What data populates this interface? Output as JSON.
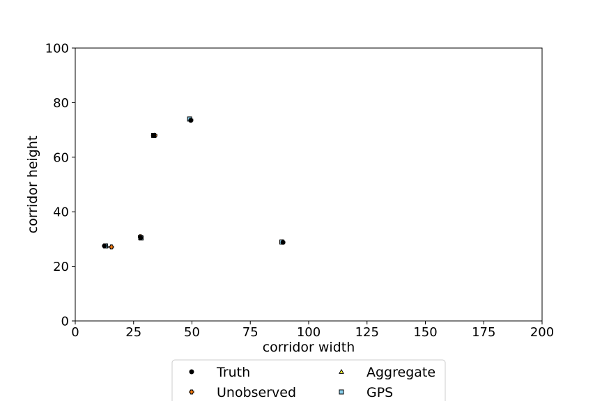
{
  "chart_data": {
    "type": "scatter",
    "title": "",
    "xlabel": "corridor width",
    "ylabel": "corridor height",
    "xlim": [
      0,
      200
    ],
    "ylim": [
      0,
      100
    ],
    "xticks": [
      "0",
      "25",
      "50",
      "75",
      "100",
      "125",
      "150",
      "175",
      "200"
    ],
    "yticks": [
      "0",
      "20",
      "40",
      "60",
      "80",
      "100"
    ],
    "grid": false,
    "legend_position": "bottom-center",
    "series": [
      {
        "name": "Truth",
        "marker": "circle",
        "color": "#000000",
        "points": [
          {
            "x": 12.5,
            "y": 27.5
          },
          {
            "x": 28,
            "y": 30.5
          },
          {
            "x": 33.5,
            "y": 68
          },
          {
            "x": 49.5,
            "y": 73.5
          },
          {
            "x": 89,
            "y": 28.8
          }
        ]
      },
      {
        "name": "Unobserved",
        "marker": "plus",
        "color": "#ff7f0e",
        "points": [
          {
            "x": 15.5,
            "y": 27.1
          },
          {
            "x": 27.9,
            "y": 30.9
          },
          {
            "x": 34.1,
            "y": 68
          },
          {
            "x": 49.5,
            "y": 73.6
          },
          {
            "x": 88.5,
            "y": 28.9
          }
        ]
      },
      {
        "name": "Aggregate",
        "marker": "triangle",
        "color": "#ffff33",
        "points": [
          {
            "x": 13.2,
            "y": 27.5
          },
          {
            "x": 28,
            "y": 30.5
          },
          {
            "x": 33.8,
            "y": 68
          },
          {
            "x": 49.2,
            "y": 73.9
          },
          {
            "x": 88.8,
            "y": 28.9
          }
        ]
      },
      {
        "name": "GPS",
        "marker": "square",
        "color": "#87ceeb",
        "points": [
          {
            "x": 13,
            "y": 27.5
          },
          {
            "x": 28.2,
            "y": 30.4
          },
          {
            "x": 33.6,
            "y": 68
          },
          {
            "x": 49,
            "y": 74
          },
          {
            "x": 88.5,
            "y": 28.9
          }
        ]
      }
    ]
  }
}
